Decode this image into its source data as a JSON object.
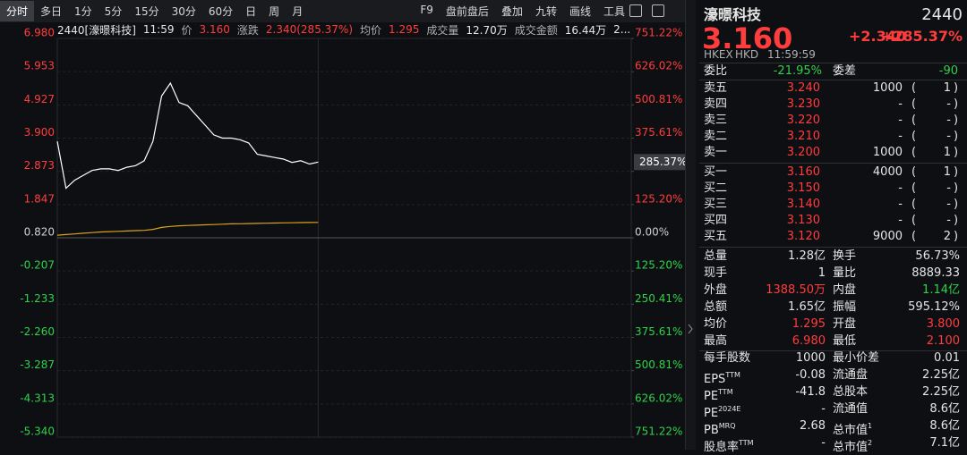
{
  "toolbar": {
    "left": [
      "分时",
      "多日",
      "1分",
      "5分",
      "15分",
      "30分",
      "60分",
      "日",
      "周",
      "月"
    ],
    "active": 0,
    "right": [
      "F9",
      "盘前盘后",
      "叠加",
      "九转",
      "画线",
      "工具"
    ]
  },
  "chart_data": {
    "type": "line",
    "info": [
      {
        "text": "2440[濠暻科技]",
        "tone": "flat"
      },
      {
        "text": "11:59",
        "tone": "flat"
      },
      {
        "text": "价",
        "tone": "muted"
      },
      {
        "text": "3.160",
        "tone": "up"
      },
      {
        "text": "涨跌",
        "tone": "muted"
      },
      {
        "text": "2.340(285.37%)",
        "tone": "up"
      },
      {
        "text": "均价",
        "tone": "muted"
      },
      {
        "text": "1.295",
        "tone": "up"
      },
      {
        "text": "成交量",
        "tone": "muted"
      },
      {
        "text": "12.70万",
        "tone": "flat"
      },
      {
        "text": "成交金额",
        "tone": "muted"
      },
      {
        "text": "16.44万",
        "tone": "flat"
      },
      {
        "text": "2...",
        "tone": "flat"
      }
    ],
    "series": [
      {
        "color": "#ffffff",
        "values": [
          3.8,
          2.35,
          2.6,
          2.75,
          2.9,
          2.95,
          2.95,
          2.9,
          3.0,
          3.05,
          3.2,
          3.8,
          5.2,
          5.6,
          5.0,
          4.9,
          4.6,
          4.3,
          4.0,
          3.9,
          3.9,
          3.85,
          3.75,
          3.4,
          3.35,
          3.3,
          3.25,
          3.15,
          3.2,
          3.1,
          3.16
        ]
      },
      {
        "color": "#d9a21b",
        "values": [
          0.9,
          0.92,
          0.94,
          0.96,
          0.98,
          1.0,
          1.01,
          1.02,
          1.03,
          1.04,
          1.05,
          1.08,
          1.14,
          1.17,
          1.19,
          1.2,
          1.21,
          1.22,
          1.23,
          1.24,
          1.25,
          1.255,
          1.26,
          1.265,
          1.27,
          1.275,
          1.28,
          1.285,
          1.29,
          1.292,
          1.295
        ]
      }
    ],
    "last_label": "285.37%",
    "ylim": [
      -5.34,
      6.98
    ],
    "yticks": [
      {
        "value": 6.98,
        "label": "6.980"
      },
      5.953,
      4.927,
      {
        "value": 3.9,
        "label": "3.900"
      },
      2.873,
      1.847,
      {
        "value": 0.82,
        "label": "0.820"
      },
      -0.207,
      -1.233,
      {
        "value": -2.26,
        "label": "-2.260"
      },
      -3.287,
      -4.313,
      {
        "value": -5.34,
        "label": "-5.340"
      }
    ],
    "y2lim": [
      -751.22,
      751.22
    ],
    "y2ticks": [
      {
        "value": 751.22,
        "label": "751.22%"
      },
      {
        "value": 626.02,
        "label": "626.02%"
      },
      {
        "value": 500.81,
        "label": "500.81%"
      },
      {
        "value": 375.61,
        "label": "375.61%"
      },
      {
        "value": 250.41,
        "label": "250.41%"
      },
      {
        "value": 125.2,
        "label": "125.20%"
      },
      {
        "value": 0,
        "label": "0.00%"
      },
      {
        "value": -125.2,
        "label": "125.20%"
      },
      {
        "value": -250.41,
        "label": "250.41%"
      },
      {
        "value": -375.61,
        "label": "375.61%"
      },
      {
        "value": -500.81,
        "label": "500.81%"
      },
      {
        "value": -626.02,
        "label": "626.02%"
      },
      {
        "value": -751.22,
        "label": "751.22%"
      }
    ],
    "grid": true
  },
  "quote": {
    "name": "濠暻科技",
    "code": "2440",
    "price": "3.160",
    "change": "+2.340",
    "pct": "+285.37%",
    "market": "HKEX",
    "currency": "HKD",
    "time": "11:59:59",
    "ratio": {
      "label": "委比",
      "value": "-21.95%",
      "label2": "委差",
      "value2": "-90"
    },
    "brackets": [
      "(",
      ")"
    ],
    "asks": [
      [
        "卖五",
        "3.240",
        "1000",
        "1"
      ],
      [
        "卖四",
        "3.230",
        "-",
        "-"
      ],
      [
        "卖三",
        "3.220",
        "-",
        "-"
      ],
      [
        "卖二",
        "3.210",
        "-",
        "-"
      ],
      [
        "卖一",
        "3.200",
        "1000",
        "1"
      ]
    ],
    "bids": [
      [
        "买一",
        "3.160",
        "4000",
        "1"
      ],
      [
        "买二",
        "3.150",
        "-",
        "-"
      ],
      [
        "买三",
        "3.140",
        "-",
        "-"
      ],
      [
        "买四",
        "3.130",
        "-",
        "-"
      ],
      [
        "买五",
        "3.120",
        "9000",
        "2"
      ]
    ],
    "stats": [
      [
        {
          "label": "总量",
          "value": "1.28亿",
          "tone": "flat"
        },
        {
          "label": "换手",
          "value": "56.73%",
          "tone": "flat"
        }
      ],
      [
        {
          "label": "现手",
          "value": "1",
          "tone": "flat"
        },
        {
          "label": "量比",
          "value": "8889.33",
          "tone": "flat"
        }
      ],
      [
        {
          "label": "外盘",
          "value": "1388.50万",
          "tone": "up"
        },
        {
          "label": "内盘",
          "value": "1.14亿",
          "tone": "down"
        }
      ],
      [
        {
          "label": "总额",
          "value": "1.65亿",
          "tone": "flat"
        },
        {
          "label": "振幅",
          "value": "595.12%",
          "tone": "flat"
        }
      ],
      [
        {
          "label": "均价",
          "value": "1.295",
          "tone": "up"
        },
        {
          "label": "开盘",
          "value": "3.800",
          "tone": "up"
        }
      ],
      [
        {
          "label": "最高",
          "value": "6.980",
          "tone": "up"
        },
        {
          "label": "最低",
          "value": "2.100",
          "tone": "up"
        }
      ],
      [
        {
          "label": "每手股数",
          "value": "1000",
          "tone": "flat"
        },
        {
          "label": "最小价差",
          "value": "0.01",
          "tone": "flat"
        }
      ],
      [
        {
          "label": "EPS",
          "sup": "TTM",
          "value": "-0.08",
          "tone": "flat"
        },
        {
          "label": "流通盘",
          "value": "2.25亿",
          "tone": "flat"
        }
      ],
      [
        {
          "label": "PE",
          "sup": "TTM",
          "value": "-41.8",
          "tone": "flat"
        },
        {
          "label": "总股本",
          "value": "2.25亿",
          "tone": "flat"
        }
      ],
      [
        {
          "label": "PE",
          "sup": "2024E",
          "value": "-",
          "tone": "flat"
        },
        {
          "label": "流通值",
          "value": "8.6亿",
          "tone": "flat"
        }
      ],
      [
        {
          "label": "PB",
          "sup": "MRQ",
          "value": "2.68",
          "tone": "flat"
        },
        {
          "label": "总市值",
          "sup": "1",
          "value": "8.6亿",
          "tone": "flat"
        }
      ],
      [
        {
          "label": "股息率",
          "sup": "TTM",
          "value": "-",
          "tone": "flat"
        },
        {
          "label": "总市值",
          "sup": "2",
          "value": "7.1亿",
          "tone": "flat"
        }
      ]
    ]
  }
}
